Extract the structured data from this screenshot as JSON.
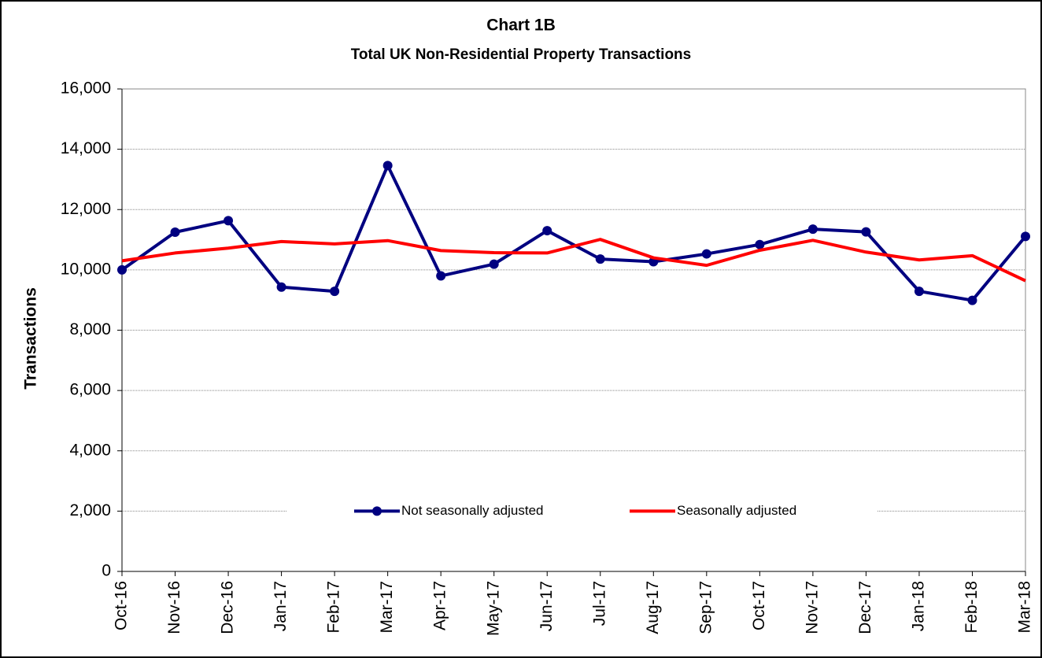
{
  "chart_data": {
    "type": "line",
    "title": "Chart 1B",
    "subtitle": "Total UK Non-Residential Property Transactions",
    "y_label": "Transactions",
    "categories": [
      "Oct-16",
      "Nov-16",
      "Dec-16",
      "Jan-17",
      "Feb-17",
      "Mar-17",
      "Apr-17",
      "May-17",
      "Jun-17",
      "Jul-17",
      "Aug-17",
      "Sep-17",
      "Oct-17",
      "Nov-17",
      "Dec-17",
      "Jan-18",
      "Feb-18",
      "Mar-18"
    ],
    "series": [
      {
        "name": "Not seasonally adjusted",
        "color": "#000080",
        "markers": true,
        "values": [
          10000,
          11250,
          11630,
          9430,
          9290,
          13460,
          9800,
          10190,
          11300,
          10360,
          10270,
          10530,
          10840,
          11350,
          11260,
          9290,
          8990,
          11110
        ]
      },
      {
        "name": "Seasonally adjusted",
        "color": "#ff0000",
        "markers": false,
        "values": [
          10300,
          10560,
          10720,
          10940,
          10860,
          10970,
          10640,
          10570,
          10560,
          11010,
          10400,
          10150,
          10650,
          10980,
          10590,
          10330,
          10470,
          9640
        ]
      }
    ],
    "ylim": [
      0,
      16000
    ],
    "yticks": [
      0,
      {
        "value": 2000,
        "label": "2,000"
      },
      {
        "value": 4000,
        "label": "4,000"
      },
      {
        "value": 6000,
        "label": "6,000"
      },
      {
        "value": 8000,
        "label": "8,000"
      },
      {
        "value": 10000,
        "label": "10,000"
      },
      {
        "value": 12000,
        "label": "12,000"
      },
      {
        "value": 14000,
        "label": "14,000"
      },
      {
        "value": 16000,
        "label": "16,000"
      }
    ],
    "grid": true,
    "legend": "bottom"
  }
}
